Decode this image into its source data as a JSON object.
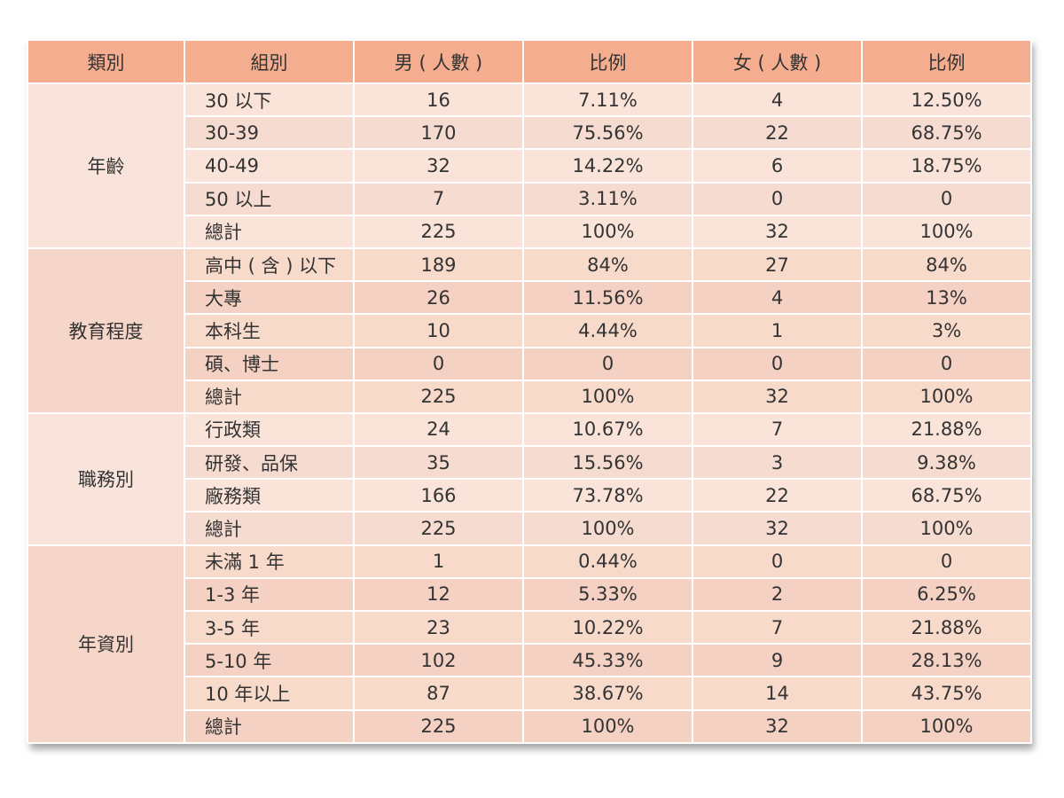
{
  "chart_data": {
    "type": "table",
    "headers": [
      "類別",
      "組別",
      "男 ( 人數 )",
      "比例",
      "女 ( 人數 )",
      "比例"
    ],
    "sections": [
      {
        "category": "年齡",
        "rows": [
          [
            "30 以下",
            "16",
            "7.11%",
            "4",
            "12.50%"
          ],
          [
            "30-39",
            "170",
            "75.56%",
            "22",
            "68.75%"
          ],
          [
            "40-49",
            "32",
            "14.22%",
            "6",
            "18.75%"
          ],
          [
            "50 以上",
            "7",
            "3.11%",
            "0",
            "0"
          ],
          [
            "總計",
            "225",
            "100%",
            "32",
            "100%"
          ]
        ]
      },
      {
        "category": "教育程度",
        "rows": [
          [
            "高中 ( 含 ) 以下",
            "189",
            "84%",
            "27",
            "84%"
          ],
          [
            "大專",
            "26",
            "11.56%",
            "4",
            "13%"
          ],
          [
            "本科生",
            "10",
            "4.44%",
            "1",
            "3%"
          ],
          [
            "碩、博士",
            "0",
            "0",
            "0",
            "0"
          ],
          [
            "總計",
            "225",
            "100%",
            "32",
            "100%"
          ]
        ]
      },
      {
        "category": "職務別",
        "rows": [
          [
            "行政類",
            "24",
            "10.67%",
            "7",
            "21.88%"
          ],
          [
            "研發、品保",
            "35",
            "15.56%",
            "3",
            "9.38%"
          ],
          [
            "廠務類",
            "166",
            "73.78%",
            "22",
            "68.75%"
          ],
          [
            "總計",
            "225",
            "100%",
            "32",
            "100%"
          ]
        ]
      },
      {
        "category": "年資別",
        "rows": [
          [
            "未滿 1 年",
            "1",
            "0.44%",
            "0",
            "0"
          ],
          [
            "1-3 年",
            "12",
            "5.33%",
            "2",
            "6.25%"
          ],
          [
            "3-5 年",
            "23",
            "10.22%",
            "7",
            "21.88%"
          ],
          [
            "5-10 年",
            "102",
            "45.33%",
            "9",
            "28.13%"
          ],
          [
            "10 年以上",
            "87",
            "38.67%",
            "14",
            "43.75%"
          ],
          [
            "總計",
            "225",
            "100%",
            "32",
            "100%"
          ]
        ]
      }
    ]
  },
  "colors": {
    "header": "#f4ae8f",
    "band_light": "#fae3d8",
    "band_dark": "#f4d1c2",
    "text": "#333333"
  }
}
